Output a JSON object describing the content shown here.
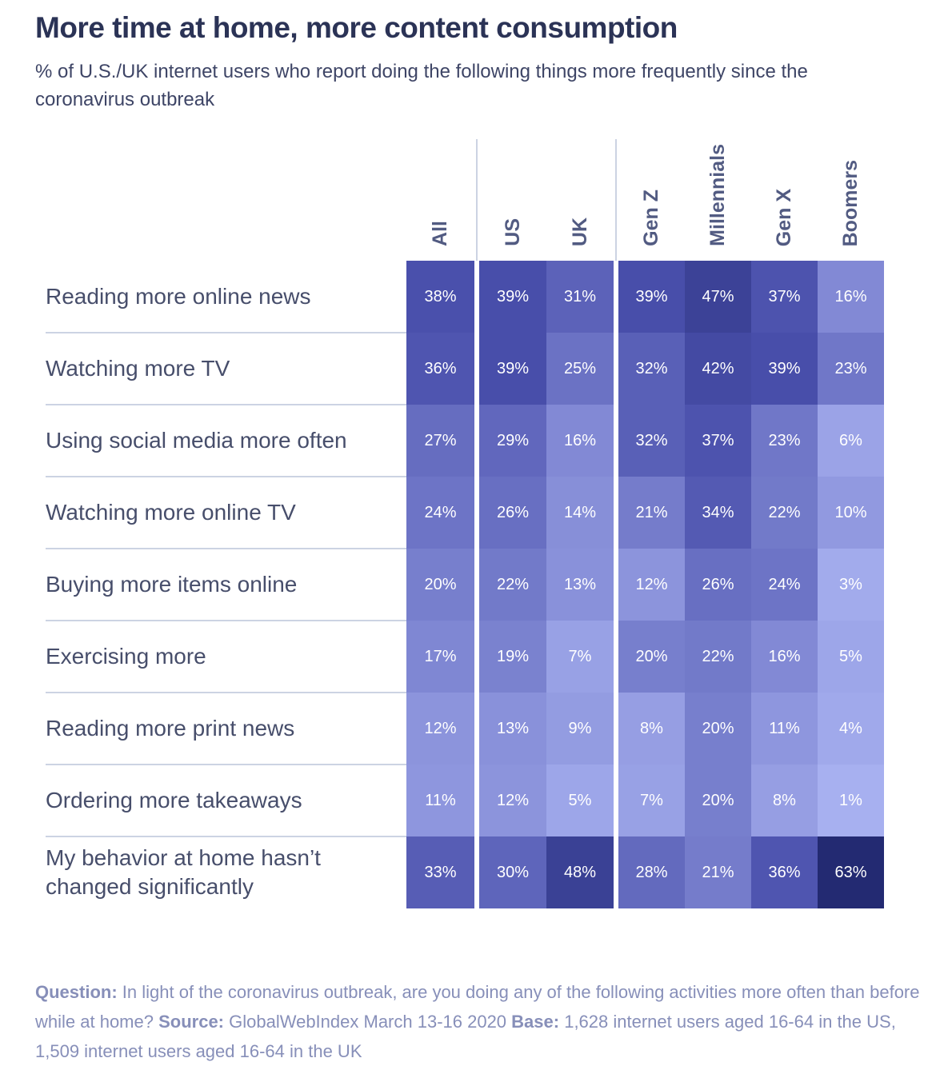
{
  "header": {
    "title": "More time at home, more content consumption",
    "subtitle": "% of U.S./UK internet users who report doing the following things more frequently since the coronavirus outbreak"
  },
  "chart_data": {
    "type": "heatmap",
    "columns": [
      "All",
      "US",
      "UK",
      "Gen Z",
      "Millennials",
      "Gen X",
      "Boomers"
    ],
    "rows": [
      {
        "label": "Reading more online news",
        "values": [
          38,
          39,
          31,
          39,
          47,
          37,
          16
        ]
      },
      {
        "label": "Watching more TV",
        "values": [
          36,
          39,
          25,
          32,
          42,
          39,
          23
        ]
      },
      {
        "label": "Using social media more often",
        "values": [
          27,
          29,
          16,
          32,
          37,
          23,
          6
        ]
      },
      {
        "label": "Watching more online TV",
        "values": [
          24,
          26,
          14,
          21,
          34,
          22,
          10
        ]
      },
      {
        "label": "Buying more items online",
        "values": [
          20,
          22,
          13,
          12,
          26,
          24,
          3
        ]
      },
      {
        "label": "Exercising more",
        "values": [
          17,
          19,
          7,
          20,
          22,
          16,
          5
        ]
      },
      {
        "label": "Reading more print news",
        "values": [
          12,
          13,
          9,
          8,
          20,
          11,
          4
        ]
      },
      {
        "label": "Ordering more takeaways",
        "values": [
          11,
          12,
          5,
          7,
          20,
          8,
          1
        ]
      },
      {
        "label": "My behavior at home hasn’t changed significantly",
        "values": [
          33,
          30,
          48,
          28,
          21,
          36,
          63
        ]
      }
    ],
    "value_suffix": "%",
    "value_range": [
      0,
      65
    ],
    "color_scale": {
      "stops": [
        {
          "value": 0,
          "color": "#aab3f2"
        },
        {
          "value": 38,
          "color": "#4a50ac"
        },
        {
          "value": 63,
          "color": "#232a72"
        }
      ]
    },
    "column_gaps_after": [
      "All",
      "UK"
    ],
    "legend": "none",
    "grid": "row-separators-on-label-side-only"
  },
  "footer": {
    "segments": [
      {
        "text": "Question:",
        "bold": true
      },
      {
        "text": " In light of the coronavirus outbreak, are you doing any of the following activities more often than before while at home? ",
        "bold": false
      },
      {
        "text": "Source:",
        "bold": true
      },
      {
        "text": " GlobalWebIndex March 13-16 2020 ",
        "bold": false
      },
      {
        "text": "Base:",
        "bold": true
      },
      {
        "text": " 1,628 internet users aged 16-64 in the US, 1,509 internet users aged 16-64 in the UK",
        "bold": false
      }
    ]
  },
  "colors": {
    "title": "#2b3356",
    "subtitle": "#3e4566",
    "row_label": "#474e6b",
    "column_header": "#525b82",
    "separator": "#ccd3e3",
    "footer": "#878fb9",
    "cell_text": "#ffffff",
    "background": "#ffffff"
  }
}
